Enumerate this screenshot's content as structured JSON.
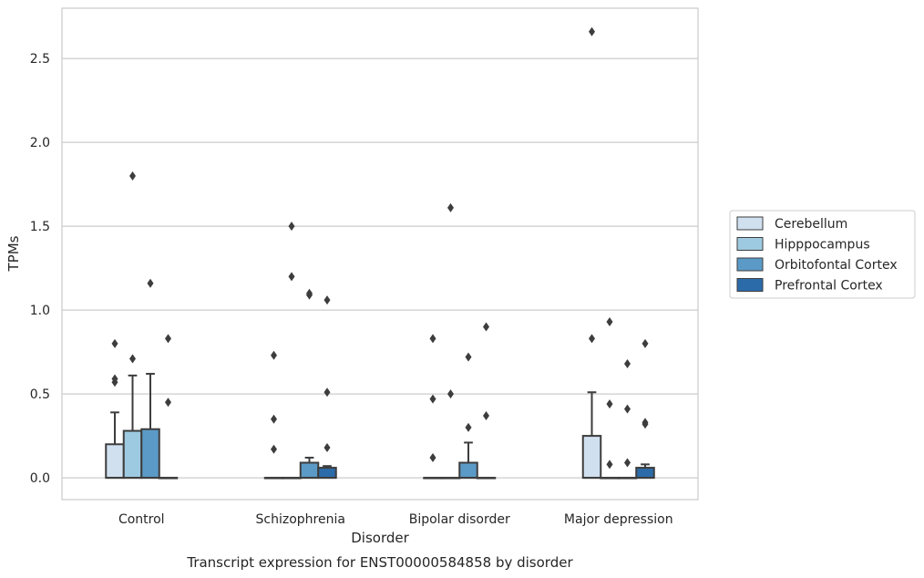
{
  "chart_data": {
    "type": "box",
    "title": "",
    "caption": "Transcript expression for ENST00000584858 by disorder",
    "xlabel": "Disorder",
    "ylabel": "TPMs",
    "categories": [
      "Control",
      "Schizophrenia",
      "Bipolar disorder",
      "Major depression"
    ],
    "ylim": [
      -0.13,
      2.8
    ],
    "yticks": [
      0.0,
      0.5,
      1.0,
      1.5,
      2.0,
      2.5
    ],
    "ytick_labels": [
      "0.0",
      "0.5",
      "1.0",
      "1.5",
      "2.0",
      "2.5"
    ],
    "grid": "horizontal",
    "legend_position": "right",
    "series": [
      {
        "name": "Cerebellum",
        "color": "#d0e0ef",
        "boxes": [
          {
            "q1": 0,
            "median": 0,
            "q3": 0.2,
            "whisker_low": 0,
            "whisker_high": 0.39,
            "outliers": [
              0.57,
              0.59,
              0.8
            ]
          },
          {
            "q1": 0,
            "median": 0,
            "q3": 0,
            "whisker_low": 0,
            "whisker_high": 0,
            "outliers": [
              0.17,
              0.35,
              0.73
            ]
          },
          {
            "q1": 0,
            "median": 0,
            "q3": 0,
            "whisker_low": 0,
            "whisker_high": 0,
            "outliers": [
              0.12,
              0.47,
              0.83
            ]
          },
          {
            "q1": 0,
            "median": 0,
            "q3": 0.25,
            "whisker_low": 0,
            "whisker_high": 0.51,
            "outliers": [
              0.83,
              2.66
            ]
          }
        ]
      },
      {
        "name": "Hipppocampus",
        "color": "#9ecae1",
        "boxes": [
          {
            "q1": 0,
            "median": 0,
            "q3": 0.28,
            "whisker_low": 0,
            "whisker_high": 0.61,
            "outliers": [
              0.71,
              1.8
            ]
          },
          {
            "q1": 0,
            "median": 0,
            "q3": 0,
            "whisker_low": 0,
            "whisker_high": 0,
            "outliers": [
              1.2,
              1.5
            ]
          },
          {
            "q1": 0,
            "median": 0,
            "q3": 0,
            "whisker_low": 0,
            "whisker_high": 0,
            "outliers": [
              0.5,
              1.61
            ]
          },
          {
            "q1": 0,
            "median": 0,
            "q3": 0,
            "whisker_low": 0,
            "whisker_high": 0,
            "outliers": [
              0.08,
              0.44,
              0.93
            ]
          }
        ]
      },
      {
        "name": "Orbitofontal Cortex",
        "color": "#5b9ac6",
        "boxes": [
          {
            "q1": 0,
            "median": 0,
            "q3": 0.29,
            "whisker_low": 0,
            "whisker_high": 0.62,
            "outliers": [
              1.16
            ]
          },
          {
            "q1": 0,
            "median": 0,
            "q3": 0.09,
            "whisker_low": 0,
            "whisker_high": 0.12,
            "outliers": [
              1.09,
              1.1
            ]
          },
          {
            "q1": 0,
            "median": 0,
            "q3": 0.09,
            "whisker_low": 0,
            "whisker_high": 0.21,
            "outliers": [
              0.3,
              0.72
            ]
          },
          {
            "q1": 0,
            "median": 0,
            "q3": 0,
            "whisker_low": 0,
            "whisker_high": 0,
            "outliers": [
              0.09,
              0.41,
              0.68
            ]
          }
        ]
      },
      {
        "name": "Prefrontal Cortex",
        "color": "#2c6ba9",
        "boxes": [
          {
            "q1": 0,
            "median": 0,
            "q3": 0,
            "whisker_low": 0,
            "whisker_high": 0,
            "outliers": [
              0.45,
              0.83
            ]
          },
          {
            "q1": 0,
            "median": 0,
            "q3": 0.06,
            "whisker_low": 0,
            "whisker_high": 0.07,
            "outliers": [
              0.18,
              0.51,
              1.06
            ]
          },
          {
            "q1": 0,
            "median": 0,
            "q3": 0,
            "whisker_low": 0,
            "whisker_high": 0,
            "outliers": [
              0.37,
              0.9
            ]
          },
          {
            "q1": 0,
            "median": 0,
            "q3": 0.06,
            "whisker_low": 0,
            "whisker_high": 0.08,
            "outliers": [
              0.32,
              0.33,
              0.8
            ]
          }
        ]
      }
    ]
  }
}
